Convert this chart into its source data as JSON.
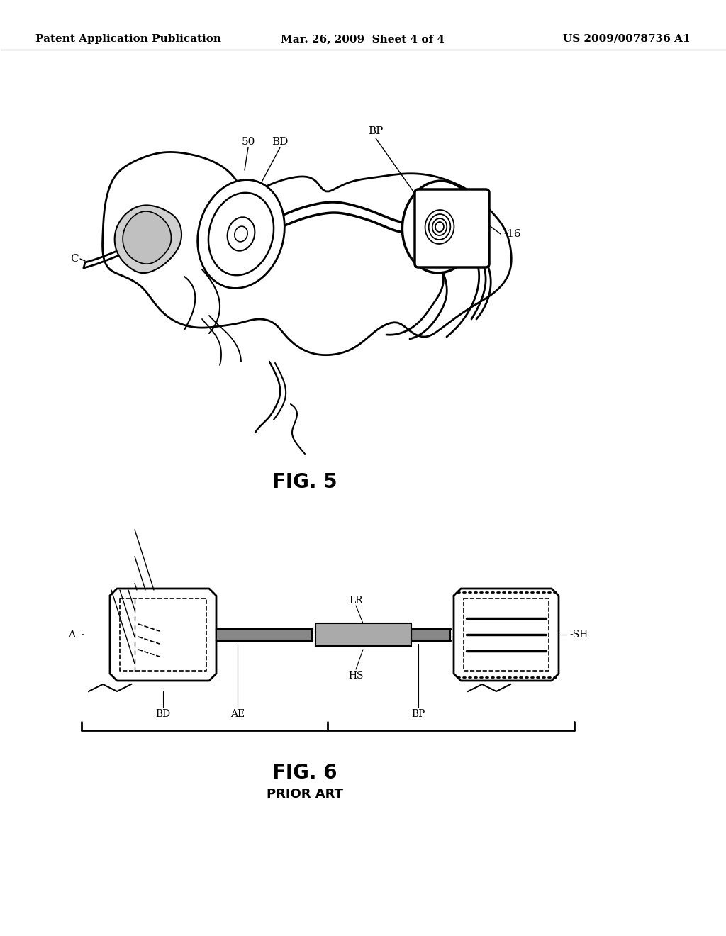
{
  "background_color": "#ffffff",
  "header": {
    "left": "Patent Application Publication",
    "center": "Mar. 26, 2009  Sheet 4 of 4",
    "right": "US 2009/0078736 A1",
    "fontsize": 11
  },
  "fig5_label": "FIG. 5",
  "fig5_label_fontsize": 20,
  "fig6_label": "FIG. 6",
  "fig6_sublabel": "PRIOR ART",
  "fig6_label_fontsize": 20,
  "fig6_sublabel_fontsize": 13
}
